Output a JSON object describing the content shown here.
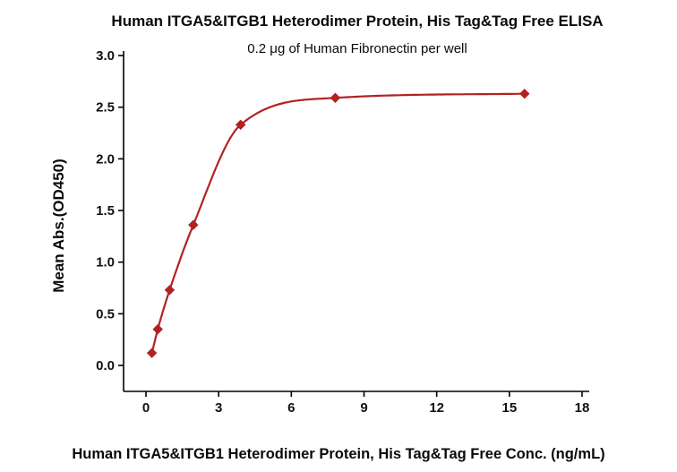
{
  "page": {
    "background": "#ffffff"
  },
  "chart_data": {
    "type": "scatter",
    "title": "Human ITGA5&ITGB1 Heterodimer Protein, His Tag&Tag Free ELISA",
    "subtitle": "0.2 μg of Human Fibronectin per well",
    "xlabel": "Human ITGA5&ITGB1 Heterodimer Protein, His Tag&Tag Free Conc. (ng/mL)",
    "ylabel": "Mean Abs.(OD450)",
    "x": [
      0.244,
      0.488,
      0.977,
      1.953,
      3.906,
      7.813,
      15.625
    ],
    "y": [
      0.12,
      0.35,
      0.73,
      1.36,
      2.33,
      2.59,
      2.63
    ],
    "xticks": [
      0,
      3,
      6,
      9,
      12,
      15,
      18
    ],
    "yticks": [
      0.0,
      0.5,
      1.0,
      1.5,
      2.0,
      2.5,
      3.0
    ],
    "xlim": [
      -0.9,
      18.3
    ],
    "ylim": [
      -0.25,
      3.0
    ],
    "grid": false,
    "legend": "none",
    "marker": "diamond",
    "fit": "smooth-sigmoid-curve",
    "series_color": "#b22222",
    "axis_color": "#000000",
    "text_color": "#0a0a0a"
  }
}
